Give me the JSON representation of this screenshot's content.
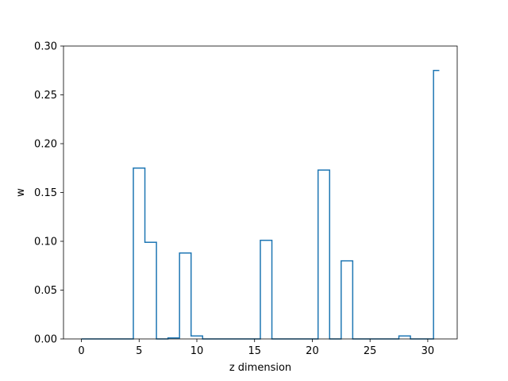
{
  "chart_data": {
    "type": "line",
    "drawstyle": "steps-mid",
    "title": "",
    "xlabel": "z dimension",
    "ylabel": "w",
    "xlim": [
      -1.55,
      32.55
    ],
    "ylim": [
      0,
      0.3
    ],
    "xticks": [
      0,
      5,
      10,
      15,
      20,
      25,
      30
    ],
    "yticks": [
      0.0,
      0.05,
      0.1,
      0.15,
      0.2,
      0.25,
      0.3
    ],
    "ytick_labels": [
      "0.00",
      "0.05",
      "0.10",
      "0.15",
      "0.20",
      "0.25",
      "0.30"
    ],
    "grid": false,
    "series_color": "#1f77b4",
    "x": [
      0,
      1,
      2,
      3,
      4,
      5,
      6,
      7,
      8,
      9,
      10,
      11,
      12,
      13,
      14,
      15,
      16,
      17,
      18,
      19,
      20,
      21,
      22,
      23,
      24,
      25,
      26,
      27,
      28,
      29,
      30,
      31
    ],
    "y": [
      0,
      0,
      0,
      0,
      0,
      0.175,
      0.099,
      0,
      0.001,
      0.088,
      0.003,
      0,
      0,
      0,
      0,
      0,
      0.101,
      0,
      0,
      0,
      0,
      0.173,
      0,
      0.08,
      0,
      0,
      0,
      0,
      0.003,
      0,
      0,
      0.275
    ]
  }
}
